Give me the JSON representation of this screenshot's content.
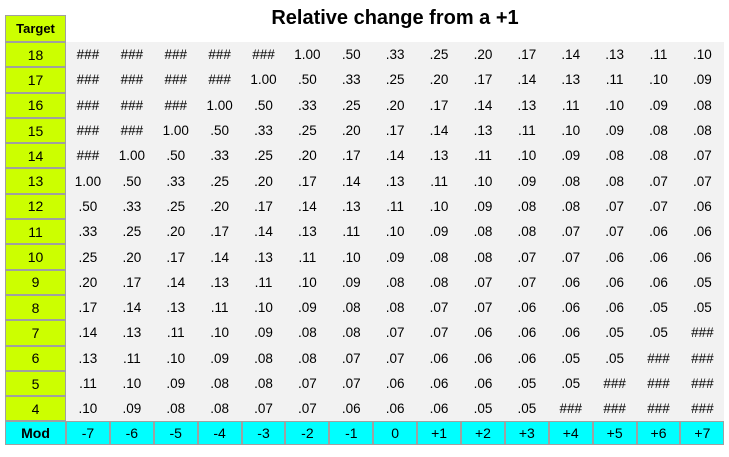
{
  "title": "Relative change from a +1",
  "header_label": "Target",
  "footer_label": "Mod",
  "targets": [
    "18",
    "17",
    "16",
    "15",
    "14",
    "13",
    "12",
    "11",
    "10",
    "9",
    "8",
    "7",
    "6",
    "5",
    "4"
  ],
  "mods": [
    "-7",
    "-6",
    "-5",
    "-4",
    "-3",
    "-2",
    "-1",
    "0",
    "+1",
    "+2",
    "+3",
    "+4",
    "+5",
    "+6",
    "+7"
  ],
  "rows": [
    [
      "###",
      "###",
      "###",
      "###",
      "###",
      "1.00",
      ".50",
      ".33",
      ".25",
      ".20",
      ".17",
      ".14",
      ".13",
      ".11",
      ".10"
    ],
    [
      "###",
      "###",
      "###",
      "###",
      "1.00",
      ".50",
      ".33",
      ".25",
      ".20",
      ".17",
      ".14",
      ".13",
      ".11",
      ".10",
      ".09"
    ],
    [
      "###",
      "###",
      "###",
      "1.00",
      ".50",
      ".33",
      ".25",
      ".20",
      ".17",
      ".14",
      ".13",
      ".11",
      ".10",
      ".09",
      ".08"
    ],
    [
      "###",
      "###",
      "1.00",
      ".50",
      ".33",
      ".25",
      ".20",
      ".17",
      ".14",
      ".13",
      ".11",
      ".10",
      ".09",
      ".08",
      ".08"
    ],
    [
      "###",
      "1.00",
      ".50",
      ".33",
      ".25",
      ".20",
      ".17",
      ".14",
      ".13",
      ".11",
      ".10",
      ".09",
      ".08",
      ".08",
      ".07"
    ],
    [
      "1.00",
      ".50",
      ".33",
      ".25",
      ".20",
      ".17",
      ".14",
      ".13",
      ".11",
      ".10",
      ".09",
      ".08",
      ".08",
      ".07",
      ".07"
    ],
    [
      ".50",
      ".33",
      ".25",
      ".20",
      ".17",
      ".14",
      ".13",
      ".11",
      ".10",
      ".09",
      ".08",
      ".08",
      ".07",
      ".07",
      ".06"
    ],
    [
      ".33",
      ".25",
      ".20",
      ".17",
      ".14",
      ".13",
      ".11",
      ".10",
      ".09",
      ".08",
      ".08",
      ".07",
      ".07",
      ".06",
      ".06"
    ],
    [
      ".25",
      ".20",
      ".17",
      ".14",
      ".13",
      ".11",
      ".10",
      ".09",
      ".08",
      ".08",
      ".07",
      ".07",
      ".06",
      ".06",
      ".06"
    ],
    [
      ".20",
      ".17",
      ".14",
      ".13",
      ".11",
      ".10",
      ".09",
      ".08",
      ".08",
      ".07",
      ".07",
      ".06",
      ".06",
      ".06",
      ".05"
    ],
    [
      ".17",
      ".14",
      ".13",
      ".11",
      ".10",
      ".09",
      ".08",
      ".08",
      ".07",
      ".07",
      ".06",
      ".06",
      ".06",
      ".05",
      ".05"
    ],
    [
      ".14",
      ".13",
      ".11",
      ".10",
      ".09",
      ".08",
      ".08",
      ".07",
      ".07",
      ".06",
      ".06",
      ".06",
      ".05",
      ".05",
      "###"
    ],
    [
      ".13",
      ".11",
      ".10",
      ".09",
      ".08",
      ".08",
      ".07",
      ".07",
      ".06",
      ".06",
      ".06",
      ".05",
      ".05",
      "###",
      "###"
    ],
    [
      ".11",
      ".10",
      ".09",
      ".08",
      ".08",
      ".07",
      ".07",
      ".06",
      ".06",
      ".06",
      ".05",
      ".05",
      "###",
      "###",
      "###"
    ],
    [
      ".10",
      ".09",
      ".08",
      ".08",
      ".07",
      ".07",
      ".06",
      ".06",
      ".06",
      ".05",
      ".05",
      "###",
      "###",
      "###",
      "###"
    ]
  ],
  "colors": {
    "target_column": "#ccff00",
    "mod_row": "#00ffff",
    "value_background": "#f2f2f2"
  }
}
